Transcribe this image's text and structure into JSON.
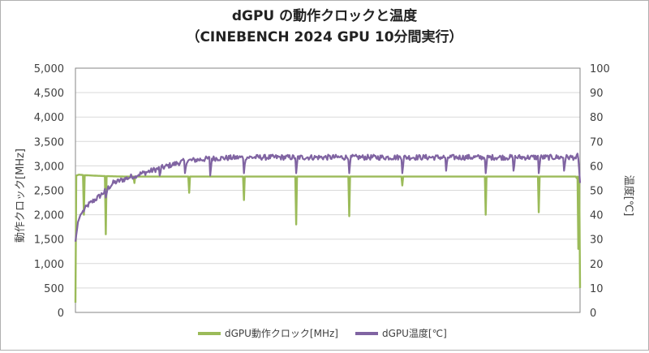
{
  "chart_data": {
    "type": "line",
    "title_line1": "dGPU の動作クロックと温度",
    "title_line2": "（CINEBENCH 2024 GPU 10分間実行）",
    "ylabel_left": "動作クロック[MHz]",
    "ylabel_right": "温度[℃]",
    "y_left": {
      "min": 0,
      "max": 5000,
      "step": 500,
      "tick_labels": [
        "0",
        "500",
        "1,000",
        "1,500",
        "2,000",
        "2,500",
        "3,000",
        "3,500",
        "4,000",
        "4,500",
        "5,000"
      ]
    },
    "y_right": {
      "min": 0,
      "max": 100,
      "step": 10,
      "tick_labels": [
        "0",
        "10",
        "20",
        "30",
        "40",
        "50",
        "60",
        "70",
        "80",
        "90",
        "100"
      ]
    },
    "x_sample_count": 600,
    "gridlines": true,
    "legend_position": "bottom",
    "series": [
      {
        "name": "dGPU動作クロック[MHz]",
        "color": "#9bbb59",
        "axis": "left",
        "baseline": 2780,
        "start_points": [
          [
            0,
            200
          ],
          [
            1,
            2800
          ],
          [
            4,
            2820
          ],
          [
            10,
            2810
          ],
          [
            22,
            2800
          ],
          [
            36,
            2790
          ],
          [
            60,
            2780
          ]
        ],
        "dips": [
          [
            10,
            2000
          ],
          [
            36,
            1600
          ],
          [
            70,
            2650
          ],
          [
            135,
            2450
          ],
          [
            200,
            2300
          ],
          [
            262,
            1800
          ],
          [
            325,
            1970
          ],
          [
            388,
            2600
          ],
          [
            487,
            2000
          ],
          [
            550,
            2050
          ]
        ],
        "end_points": [
          [
            592,
            2780
          ],
          [
            595,
            2750
          ],
          [
            597,
            1300
          ],
          [
            599,
            500
          ]
        ]
      },
      {
        "name": "dGPU温度[℃]",
        "color": "#8064a2",
        "axis": "right",
        "anchors": [
          [
            0,
            29
          ],
          [
            3,
            37
          ],
          [
            6,
            40
          ],
          [
            15,
            44
          ],
          [
            30,
            48
          ],
          [
            45,
            53
          ],
          [
            70,
            56
          ],
          [
            100,
            59
          ],
          [
            130,
            62
          ],
          [
            160,
            63
          ],
          [
            200,
            63.5
          ],
          [
            300,
            63.5
          ],
          [
            400,
            63.5
          ],
          [
            500,
            63.5
          ],
          [
            590,
            63.5
          ]
        ],
        "noise_amplitude": 1.1,
        "dips": [
          [
            36,
            47
          ],
          [
            70,
            55
          ],
          [
            100,
            56
          ],
          [
            130,
            57
          ],
          [
            160,
            56
          ],
          [
            200,
            57
          ],
          [
            262,
            57
          ],
          [
            325,
            57
          ],
          [
            388,
            57
          ],
          [
            440,
            58
          ],
          [
            487,
            57
          ],
          [
            520,
            58
          ],
          [
            550,
            57
          ],
          [
            580,
            58
          ]
        ],
        "end_points": [
          [
            594,
            63
          ],
          [
            596,
            65
          ],
          [
            598,
            58
          ],
          [
            599,
            53
          ]
        ]
      }
    ]
  }
}
